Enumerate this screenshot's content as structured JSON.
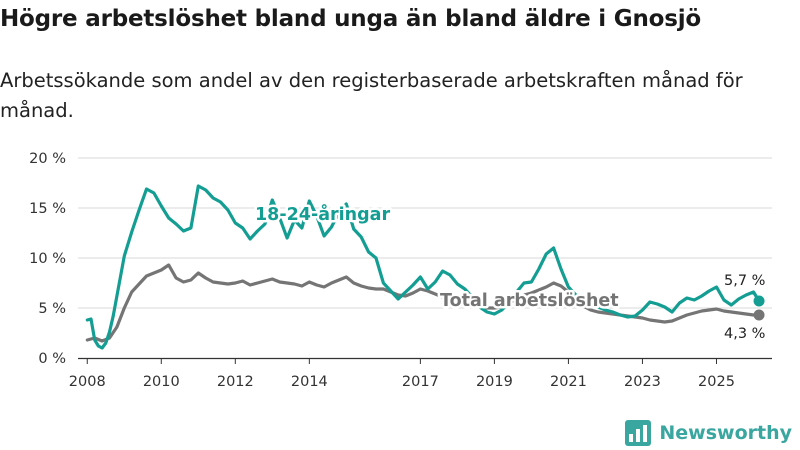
{
  "title": "Högre arbetslöshet bland unga än bland äldre i Gnosjö",
  "subtitle": "Arbetssökande som andel av den registerbaserade arbetskraften månad för månad.",
  "brand": "Newsworthy",
  "colors": {
    "youth": "#149e93",
    "total": "#757575",
    "grid": "#d9d9d9",
    "axis": "#333333"
  },
  "chart_data": {
    "type": "line",
    "title": "Högre arbetslöshet bland unga än bland äldre i Gnosjö",
    "ylim": [
      0,
      20
    ],
    "xlim": [
      2007.75,
      2026.5
    ],
    "y_ticks": [
      0,
      5,
      10,
      15,
      20
    ],
    "y_tick_labels": [
      "0 %",
      "5 %",
      "10 %",
      "15 %",
      "20 %"
    ],
    "x_ticks": [
      2008,
      2010,
      2012,
      2014,
      2017,
      2019,
      2021,
      2023,
      2025
    ],
    "x_tick_labels": [
      "2008",
      "2010",
      "2012",
      "2014",
      "2017",
      "2019",
      "2021",
      "2023",
      "2025"
    ],
    "grid": true,
    "series": [
      {
        "name": "18-24-åringar",
        "label": "18-24-åringar",
        "color": "#149e93",
        "last_label": "5,7 %",
        "x": [
          2008.0,
          2008.1,
          2008.2,
          2008.3,
          2008.4,
          2008.5,
          2008.6,
          2008.7,
          2008.8,
          2009.0,
          2009.2,
          2009.4,
          2009.6,
          2009.8,
          2010.0,
          2010.2,
          2010.4,
          2010.6,
          2010.8,
          2011.0,
          2011.2,
          2011.4,
          2011.6,
          2011.8,
          2012.0,
          2012.2,
          2012.4,
          2012.6,
          2012.8,
          2013.0,
          2013.2,
          2013.4,
          2013.6,
          2013.8,
          2014.0,
          2014.2,
          2014.4,
          2014.6,
          2014.8,
          2015.0,
          2015.2,
          2015.4,
          2015.6,
          2015.8,
          2016.0,
          2016.2,
          2016.4,
          2016.6,
          2016.8,
          2017.0,
          2017.2,
          2017.4,
          2017.6,
          2017.8,
          2018.0,
          2018.2,
          2018.4,
          2018.6,
          2018.8,
          2019.0,
          2019.2,
          2019.4,
          2019.6,
          2019.8,
          2020.0,
          2020.2,
          2020.4,
          2020.6,
          2020.8,
          2021.0,
          2021.2,
          2021.4,
          2021.6,
          2021.8,
          2022.0,
          2022.2,
          2022.4,
          2022.6,
          2022.8,
          2023.0,
          2023.2,
          2023.4,
          2023.6,
          2023.8,
          2024.0,
          2024.2,
          2024.4,
          2024.6,
          2024.8,
          2025.0,
          2025.2,
          2025.4,
          2025.6,
          2025.8,
          2026.0,
          2026.15
        ],
        "values": [
          3.8,
          3.9,
          1.8,
          1.2,
          1.0,
          1.5,
          2.6,
          4.2,
          6.2,
          10.2,
          12.6,
          14.8,
          16.9,
          16.5,
          15.2,
          14.0,
          13.4,
          12.7,
          13.0,
          17.2,
          16.8,
          16.0,
          15.6,
          14.8,
          13.5,
          13.0,
          11.9,
          12.7,
          13.4,
          15.8,
          14.0,
          12.0,
          13.8,
          13.0,
          15.7,
          14.2,
          12.2,
          13.1,
          14.6,
          15.4,
          12.9,
          12.1,
          10.6,
          10.0,
          7.5,
          6.7,
          5.9,
          6.6,
          7.3,
          8.1,
          6.9,
          7.6,
          8.7,
          8.3,
          7.4,
          6.9,
          6.1,
          5.1,
          4.6,
          4.4,
          4.8,
          5.6,
          6.6,
          7.5,
          7.6,
          8.9,
          10.4,
          11.0,
          8.9,
          7.1,
          6.3,
          5.7,
          5.3,
          5.1,
          4.8,
          4.6,
          4.3,
          4.1,
          4.2,
          4.8,
          5.6,
          5.4,
          5.1,
          4.6,
          5.5,
          6.0,
          5.8,
          6.2,
          6.7,
          7.1,
          5.8,
          5.3,
          5.9,
          6.3,
          6.6,
          5.7
        ]
      },
      {
        "name": "Total arbetslöshet",
        "label": "Total arbetslöshet",
        "color": "#757575",
        "last_label": "4,3 %",
        "x": [
          2008.0,
          2008.2,
          2008.4,
          2008.6,
          2008.8,
          2009.0,
          2009.2,
          2009.4,
          2009.6,
          2009.8,
          2010.0,
          2010.2,
          2010.4,
          2010.6,
          2010.8,
          2011.0,
          2011.2,
          2011.4,
          2011.6,
          2011.8,
          2012.0,
          2012.2,
          2012.4,
          2012.6,
          2012.8,
          2013.0,
          2013.2,
          2013.4,
          2013.6,
          2013.8,
          2014.0,
          2014.2,
          2014.4,
          2014.6,
          2014.8,
          2015.0,
          2015.2,
          2015.4,
          2015.6,
          2015.8,
          2016.0,
          2016.2,
          2016.4,
          2016.6,
          2016.8,
          2017.0,
          2017.2,
          2017.4,
          2017.6,
          2017.8,
          2018.0,
          2018.2,
          2018.4,
          2018.6,
          2018.8,
          2019.0,
          2019.2,
          2019.4,
          2019.6,
          2019.8,
          2020.0,
          2020.2,
          2020.4,
          2020.6,
          2020.8,
          2021.0,
          2021.2,
          2021.4,
          2021.6,
          2021.8,
          2022.0,
          2022.2,
          2022.4,
          2022.6,
          2022.8,
          2023.0,
          2023.2,
          2023.4,
          2023.6,
          2023.8,
          2024.0,
          2024.2,
          2024.4,
          2024.6,
          2024.8,
          2025.0,
          2025.2,
          2025.4,
          2025.6,
          2025.8,
          2026.0,
          2026.15
        ],
        "values": [
          1.8,
          2.0,
          1.7,
          2.0,
          3.1,
          5.0,
          6.6,
          7.4,
          8.2,
          8.5,
          8.8,
          9.3,
          8.0,
          7.6,
          7.8,
          8.5,
          8.0,
          7.6,
          7.5,
          7.4,
          7.5,
          7.7,
          7.3,
          7.5,
          7.7,
          7.9,
          7.6,
          7.5,
          7.4,
          7.2,
          7.6,
          7.3,
          7.1,
          7.5,
          7.8,
          8.1,
          7.5,
          7.2,
          7.0,
          6.9,
          6.9,
          6.6,
          6.3,
          6.2,
          6.5,
          6.9,
          6.7,
          6.4,
          6.1,
          5.9,
          5.7,
          5.5,
          5.3,
          5.1,
          5.0,
          5.0,
          5.1,
          5.5,
          5.9,
          6.3,
          6.5,
          6.8,
          7.1,
          7.5,
          7.2,
          6.6,
          5.9,
          5.2,
          4.8,
          4.6,
          4.5,
          4.4,
          4.3,
          4.2,
          4.1,
          4.0,
          3.8,
          3.7,
          3.6,
          3.7,
          4.0,
          4.3,
          4.5,
          4.7,
          4.8,
          4.9,
          4.7,
          4.6,
          4.5,
          4.4,
          4.3,
          4.3
        ]
      }
    ]
  }
}
